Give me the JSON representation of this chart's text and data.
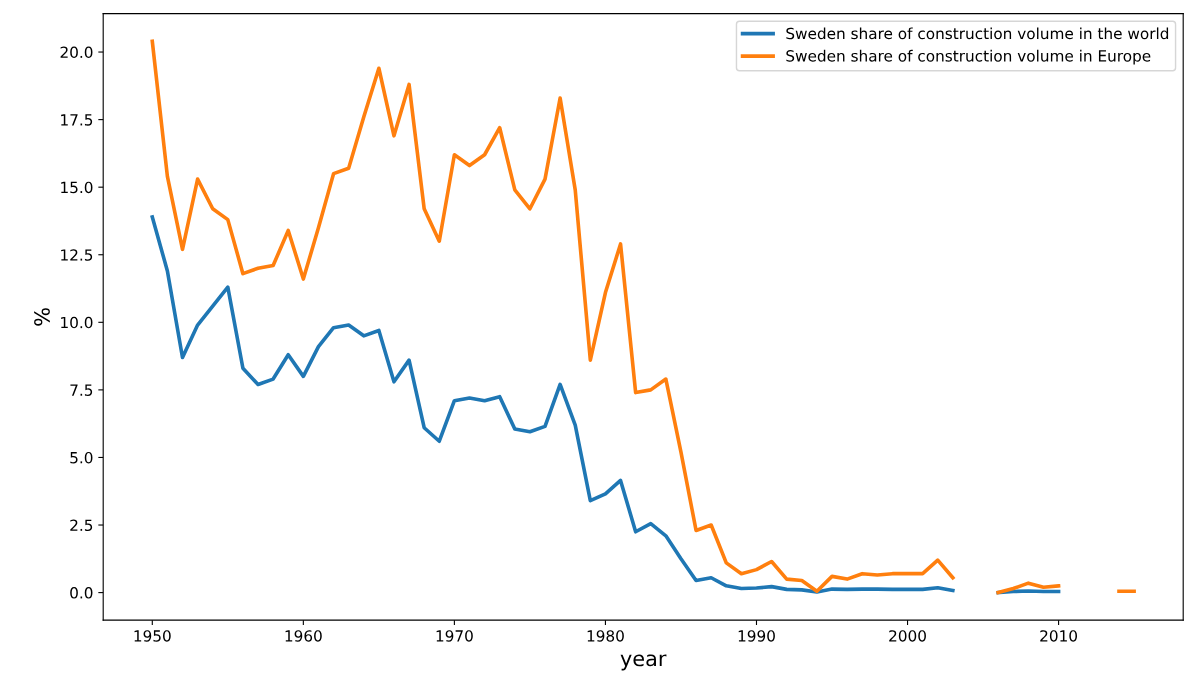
{
  "chart_data": {
    "type": "line",
    "xlabel": "year",
    "ylabel": "%",
    "x": [
      1950,
      1951,
      1952,
      1953,
      1954,
      1955,
      1956,
      1957,
      1958,
      1959,
      1960,
      1961,
      1962,
      1963,
      1964,
      1965,
      1966,
      1967,
      1968,
      1969,
      1970,
      1971,
      1972,
      1973,
      1974,
      1975,
      1976,
      1977,
      1978,
      1979,
      1980,
      1981,
      1982,
      1983,
      1984,
      1985,
      1986,
      1987,
      1988,
      1989,
      1990,
      1991,
      1992,
      1993,
      1994,
      1995,
      1996,
      1997,
      1998,
      1999,
      2000,
      2001,
      2002,
      2003,
      2004,
      2005,
      2006,
      2007,
      2008,
      2009,
      2010,
      2011,
      2012,
      2013,
      2014,
      2015
    ],
    "series": [
      {
        "name": "Sweden share of construction volume in the world",
        "color": "#1f77b4",
        "values": [
          13.9,
          11.9,
          8.7,
          9.9,
          10.6,
          11.3,
          8.3,
          7.7,
          7.9,
          8.8,
          8.0,
          9.1,
          9.8,
          9.9,
          9.5,
          9.7,
          7.8,
          8.6,
          6.1,
          5.6,
          7.1,
          7.2,
          7.1,
          7.25,
          6.05,
          5.95,
          6.15,
          7.7,
          6.2,
          3.4,
          3.65,
          4.15,
          2.25,
          2.55,
          2.1,
          1.25,
          0.45,
          0.55,
          0.25,
          0.15,
          0.17,
          0.22,
          0.12,
          0.1,
          0.02,
          0.13,
          0.12,
          0.13,
          0.13,
          0.12,
          0.12,
          0.12,
          0.18,
          0.08,
          null,
          null,
          0.0,
          0.04,
          0.06,
          0.04,
          0.04,
          null,
          null,
          null,
          null,
          null
        ]
      },
      {
        "name": "Sweden share of construction volume in Europe",
        "color": "#ff7f0e",
        "values": [
          20.4,
          15.4,
          12.7,
          15.3,
          14.2,
          13.8,
          11.8,
          12.0,
          12.1,
          13.4,
          11.6,
          13.5,
          15.5,
          15.7,
          17.6,
          19.4,
          16.9,
          18.8,
          14.2,
          13.0,
          16.2,
          15.8,
          16.2,
          17.2,
          14.9,
          14.2,
          15.3,
          18.3,
          14.9,
          8.6,
          11.1,
          12.9,
          7.4,
          7.5,
          7.9,
          5.2,
          2.3,
          2.5,
          1.1,
          0.7,
          0.85,
          1.15,
          0.5,
          0.45,
          0.05,
          0.6,
          0.5,
          0.7,
          0.65,
          0.7,
          0.7,
          0.7,
          1.2,
          0.55,
          null,
          null,
          0.0,
          0.15,
          0.35,
          0.2,
          0.25,
          null,
          null,
          null,
          0.05,
          0.05
        ]
      }
    ],
    "xlim": [
      1946.75,
      2018.25
    ],
    "xticks": [
      1950,
      1960,
      1970,
      1980,
      1990,
      2000,
      2010
    ],
    "ylim": [
      -1.02,
      21.42
    ],
    "yticks": [
      {
        "value": 0,
        "label": "0.0"
      },
      {
        "value": 2.5,
        "label": "2.5"
      },
      {
        "value": 5,
        "label": "5.0"
      },
      {
        "value": 7.5,
        "label": "7.5"
      },
      {
        "value": 10,
        "label": "10.0"
      },
      {
        "value": 12.5,
        "label": "12.5"
      },
      {
        "value": 15,
        "label": "15.0"
      },
      {
        "value": 17.5,
        "label": "17.5"
      },
      {
        "value": 20,
        "label": "20.0"
      }
    ],
    "grid": false,
    "legend": "top right",
    "marker": "none",
    "line_style": "solid"
  }
}
